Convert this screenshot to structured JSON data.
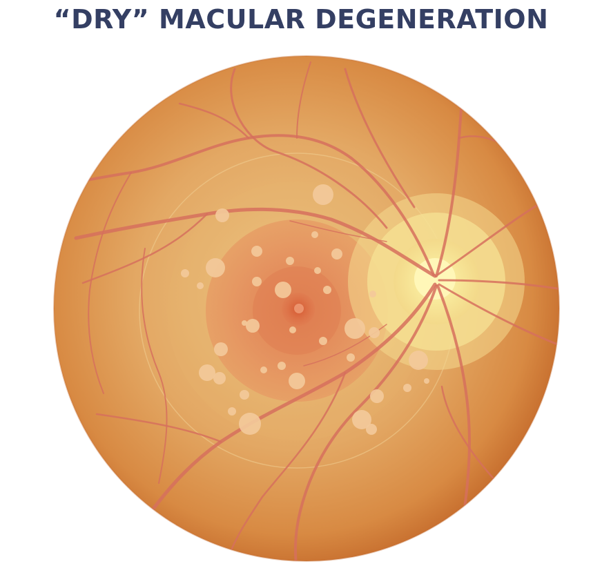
{
  "title": "“DRY” MACULAR DEGENERATION",
  "colors": {
    "title": "#343f63",
    "retina_center": "#e6bc78",
    "retina_edge": "#c8702c",
    "macula": "#e38b5a",
    "fovea": "#d9653f",
    "optic_disc": "#fbef9d",
    "vessel": "#d8735f",
    "drusen": "#f3c99a"
  },
  "icons": [
    "retina-fundus",
    "optic-disc",
    "macula",
    "fovea",
    "blood-vessel",
    "drusen-deposit"
  ]
}
